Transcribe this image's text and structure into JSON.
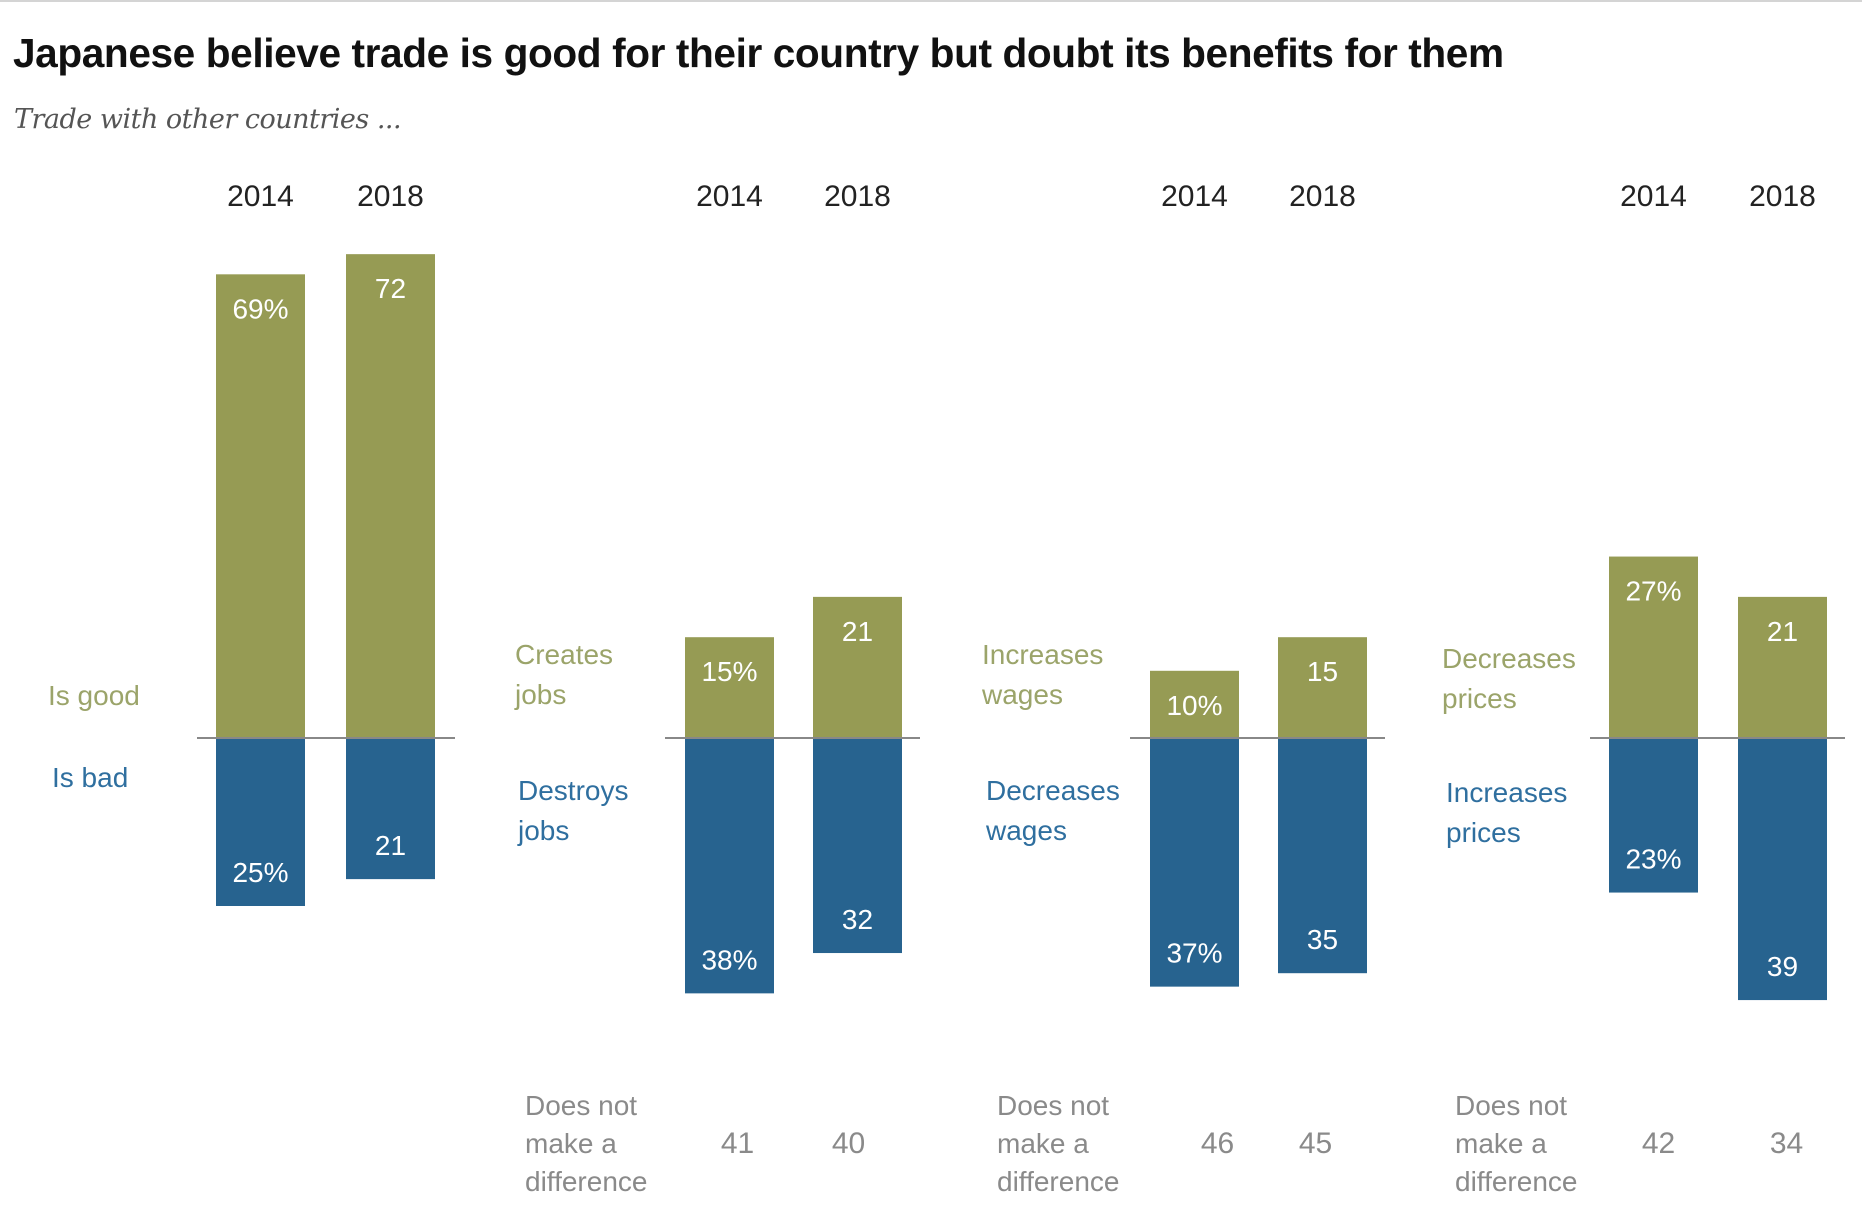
{
  "title": "Japanese believe trade is good for their country but doubt its benefits for them",
  "subtitle": "Trade with other countries ...",
  "colors": {
    "positive": "#969b54",
    "negative": "#27638f",
    "positive_text": "#9ba46a",
    "negative_text": "#2f6f9f",
    "neutral_text": "#8a8a8a",
    "baseline": "#888888"
  },
  "chart_data": {
    "type": "bar",
    "title": "Japanese believe trade is good for their country but doubt its benefits for them",
    "subtitle": "Trade with other countries ...",
    "categories": [
      "2014",
      "2018"
    ],
    "unit": "%",
    "panels": [
      {
        "positive_label": [
          "Is good"
        ],
        "negative_label": [
          "Is bad"
        ],
        "positive": [
          69,
          72
        ],
        "negative": [
          25,
          21
        ],
        "positive_display": [
          "69%",
          "72"
        ],
        "negative_display": [
          "25%",
          "21"
        ],
        "neutral_label": null,
        "neutral": null
      },
      {
        "positive_label": [
          "Creates",
          "jobs"
        ],
        "negative_label": [
          "Destroys",
          "jobs"
        ],
        "positive": [
          15,
          21
        ],
        "negative": [
          38,
          32
        ],
        "positive_display": [
          "15%",
          "21"
        ],
        "negative_display": [
          "38%",
          "32"
        ],
        "neutral_label": [
          "Does not",
          "make a",
          "difference"
        ],
        "neutral": [
          "41",
          "40"
        ]
      },
      {
        "positive_label": [
          "Increases",
          "wages"
        ],
        "negative_label": [
          "Decreases",
          "wages"
        ],
        "positive": [
          10,
          15
        ],
        "negative": [
          37,
          35
        ],
        "positive_display": [
          "10%",
          "15"
        ],
        "negative_display": [
          "37%",
          "35"
        ],
        "neutral_label": [
          "Does not",
          "make a",
          "difference"
        ],
        "neutral": [
          "46",
          "45"
        ]
      },
      {
        "positive_label": [
          "Decreases",
          "prices"
        ],
        "negative_label": [
          "Increases",
          "prices"
        ],
        "positive": [
          27,
          21
        ],
        "negative": [
          23,
          39
        ],
        "positive_display": [
          "27%",
          "21"
        ],
        "negative_display": [
          "23%",
          "39"
        ],
        "neutral_label": [
          "Does not",
          "make a",
          "difference"
        ],
        "neutral": [
          "42",
          "34"
        ]
      }
    ],
    "ylim": [
      -40,
      75
    ],
    "grid": false,
    "legend": "none"
  }
}
